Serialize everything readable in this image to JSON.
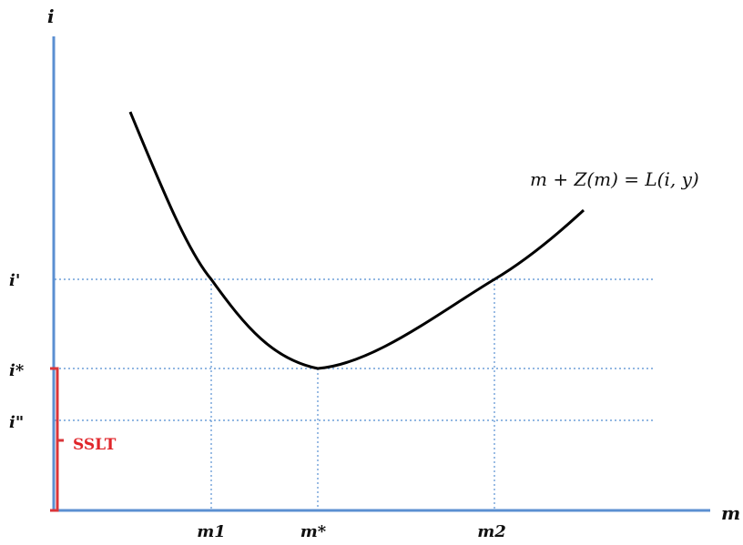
{
  "diagram": {
    "y_axis_label": "i",
    "x_axis_label": "m",
    "curve_label": "m + Z(m) = L(i, y)",
    "y_ticks": {
      "i_prime": "i'",
      "i_star": "i*",
      "i_double_prime": "i\""
    },
    "x_ticks": {
      "m1": "m1",
      "m_star": "m*",
      "m2": "m2"
    },
    "bracket_label": "SSLT",
    "colors": {
      "axis": "#5b8fd1",
      "guide": "#6f9fd8",
      "curve": "#000000",
      "bracket": "#d9353a",
      "bracket_text": "#e0252a"
    }
  }
}
